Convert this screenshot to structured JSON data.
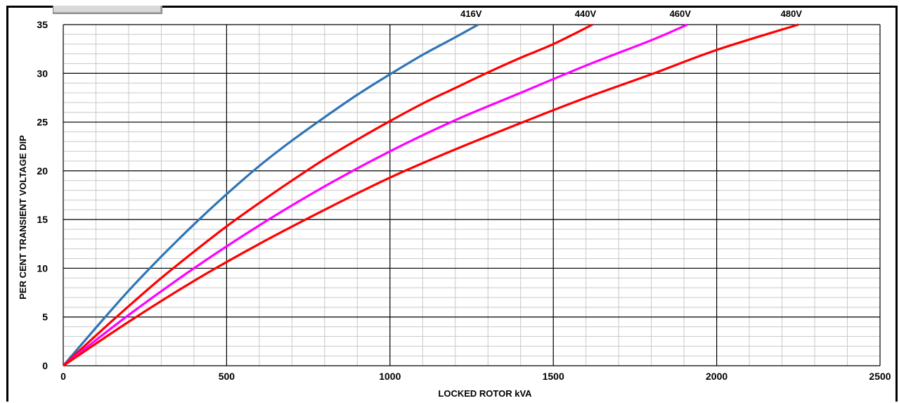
{
  "chart_data": {
    "type": "line",
    "title": "",
    "xlabel": "LOCKED ROTOR kVA",
    "ylabel": "PER CENT TRANSIENT VOLTAGE DIP",
    "xlim": [
      0,
      2500
    ],
    "ylim": [
      0,
      35
    ],
    "x_ticks": [
      "0",
      "500",
      "1000",
      "1500",
      "2000",
      "2500"
    ],
    "y_ticks": [
      "0",
      "5",
      "10",
      "15",
      "20",
      "25",
      "30",
      "35"
    ],
    "grid": true,
    "series": [
      {
        "name": "416V",
        "color": "#2e75b6",
        "x": [
          0,
          100,
          200,
          300,
          400,
          500,
          600,
          700,
          800,
          900,
          1000,
          1100,
          1200,
          1270
        ],
        "y": [
          0,
          3.9,
          7.7,
          11.2,
          14.5,
          17.6,
          20.5,
          23.1,
          25.5,
          27.8,
          29.9,
          31.9,
          33.7,
          35
        ]
      },
      {
        "name": "440V",
        "color": "#ff0000",
        "x": [
          0,
          100,
          200,
          300,
          400,
          500,
          600,
          700,
          800,
          900,
          1000,
          1100,
          1200,
          1300,
          1400,
          1500,
          1620
        ],
        "y": [
          0,
          3.1,
          6.1,
          9.0,
          11.7,
          14.3,
          16.7,
          19.0,
          21.2,
          23.2,
          25.1,
          26.9,
          28.5,
          30.1,
          31.6,
          33.0,
          35
        ]
      },
      {
        "name": "460V",
        "color": "#ff00ff",
        "x": [
          0,
          200,
          400,
          600,
          800,
          1000,
          1200,
          1400,
          1600,
          1800,
          1910
        ],
        "y": [
          0,
          5.2,
          10.0,
          14.4,
          18.4,
          22.0,
          25.2,
          28.0,
          30.8,
          33.4,
          35
        ]
      },
      {
        "name": "480V",
        "color": "#ff0000",
        "x": [
          0,
          200,
          400,
          600,
          800,
          1000,
          1200,
          1400,
          1600,
          1800,
          2000,
          2250
        ],
        "y": [
          0,
          4.5,
          8.7,
          12.5,
          16.0,
          19.3,
          22.2,
          24.9,
          27.5,
          29.9,
          32.4,
          35
        ]
      }
    ]
  }
}
